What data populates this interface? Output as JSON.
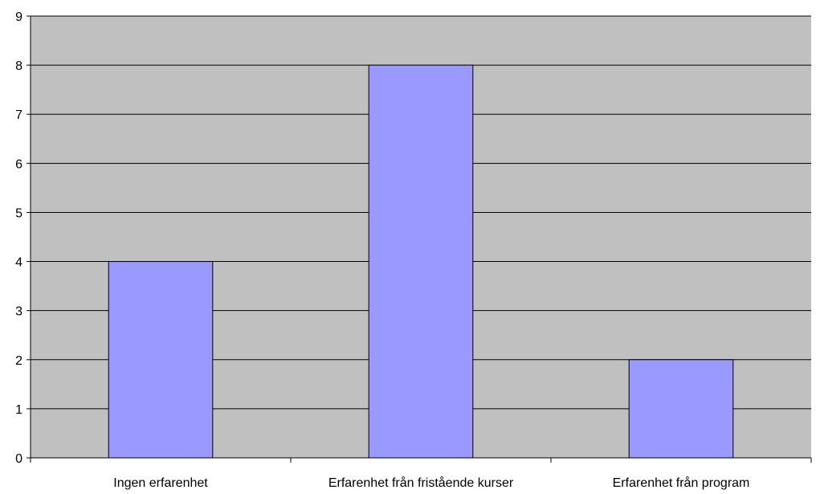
{
  "chart_data": {
    "type": "bar",
    "categories": [
      "Ingen erfarenhet",
      "Erfarenhet från fristående kurser",
      "Erfarenhet från program"
    ],
    "values": [
      4,
      8,
      2
    ],
    "ylim": [
      0,
      9
    ],
    "yticks": [
      "0",
      "1",
      "2",
      "3",
      "4",
      "5",
      "6",
      "7",
      "8",
      "9"
    ],
    "grid": true,
    "legend": "none",
    "colors": {
      "plot_background": "#c0c0c0",
      "bar_fill": "#9999ff",
      "bar_stroke": "#000000",
      "gridline": "#000000",
      "axis": "#000000"
    }
  }
}
